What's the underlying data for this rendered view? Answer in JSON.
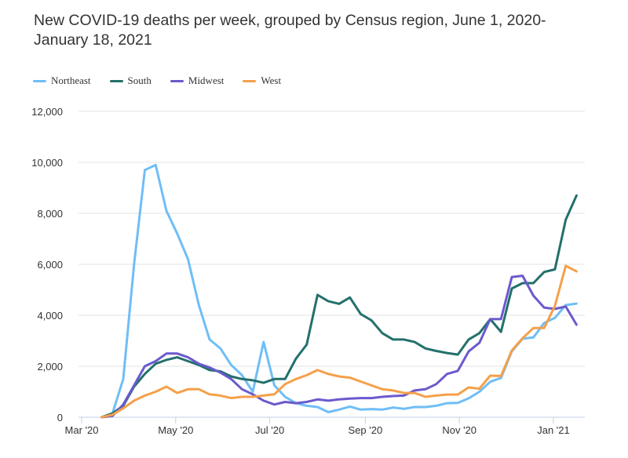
{
  "chart_data": {
    "type": "line",
    "title": "New COVID-19 deaths per week, grouped by Census region, June 1, 2020-January 18, 2021",
    "xlabel": "",
    "ylabel": "",
    "ylim": [
      0,
      12000
    ],
    "yticks": [
      "0",
      "2,000",
      "4,000",
      "6,000",
      "8,000",
      "10,000",
      "12,000"
    ],
    "ytick_values": [
      0,
      2000,
      4000,
      6000,
      8000,
      10000,
      12000
    ],
    "xticks": [
      "Mar '20",
      "May '20",
      "Jul '20",
      "Sep '20",
      "Nov '20",
      "Jan '21"
    ],
    "xtick_dates": [
      "2020-03-01",
      "2020-05-01",
      "2020-07-01",
      "2020-09-01",
      "2020-11-01",
      "2021-01-01"
    ],
    "xlim": [
      "2020-03-01",
      "2021-01-21"
    ],
    "grid": "horizontal",
    "legend_position": "top-left",
    "x": [
      "2020-03-14",
      "2020-03-21",
      "2020-03-28",
      "2020-04-04",
      "2020-04-11",
      "2020-04-18",
      "2020-04-25",
      "2020-05-02",
      "2020-05-09",
      "2020-05-16",
      "2020-05-23",
      "2020-05-30",
      "2020-06-06",
      "2020-06-13",
      "2020-06-20",
      "2020-06-27",
      "2020-07-04",
      "2020-07-11",
      "2020-07-18",
      "2020-07-25",
      "2020-08-01",
      "2020-08-08",
      "2020-08-15",
      "2020-08-22",
      "2020-08-29",
      "2020-09-05",
      "2020-09-12",
      "2020-09-19",
      "2020-09-26",
      "2020-10-03",
      "2020-10-10",
      "2020-10-17",
      "2020-10-24",
      "2020-10-31",
      "2020-11-07",
      "2020-11-14",
      "2020-11-21",
      "2020-11-28",
      "2020-12-05",
      "2020-12-12",
      "2020-12-19",
      "2020-12-26",
      "2021-01-02",
      "2021-01-09",
      "2021-01-16"
    ],
    "series": [
      {
        "name": "Northeast",
        "color": "#6fbef7",
        "values": [
          0,
          150,
          1500,
          6000,
          9700,
          9900,
          8100,
          7200,
          6200,
          4400,
          3050,
          2700,
          2050,
          1650,
          1000,
          2950,
          1250,
          800,
          550,
          450,
          400,
          200,
          300,
          420,
          300,
          320,
          300,
          380,
          330,
          400,
          400,
          450,
          550,
          560,
          740,
          1000,
          1390,
          1540,
          2580,
          3080,
          3130,
          3700,
          3900,
          4400,
          4460
        ]
      },
      {
        "name": "South",
        "color": "#23706b",
        "values": [
          0,
          150,
          450,
          1200,
          1700,
          2100,
          2250,
          2350,
          2200,
          2050,
          1850,
          1800,
          1600,
          1500,
          1450,
          1350,
          1500,
          1500,
          2300,
          2850,
          4800,
          4550,
          4450,
          4700,
          4050,
          3800,
          3300,
          3050,
          3050,
          2950,
          2700,
          2600,
          2520,
          2460,
          3050,
          3300,
          3850,
          3350,
          5050,
          5260,
          5260,
          5700,
          5800,
          7750,
          8700
        ]
      },
      {
        "name": "Midwest",
        "color": "#6a5acd",
        "values": [
          0,
          50,
          500,
          1250,
          2000,
          2200,
          2500,
          2500,
          2350,
          2100,
          1950,
          1750,
          1500,
          1100,
          900,
          650,
          500,
          600,
          550,
          600,
          700,
          650,
          700,
          730,
          750,
          750,
          800,
          830,
          850,
          1050,
          1100,
          1300,
          1700,
          1820,
          2580,
          2920,
          3850,
          3850,
          5500,
          5550,
          4770,
          4300,
          4250,
          4340,
          3630
        ]
      },
      {
        "name": "West",
        "color": "#f5a04a",
        "values": [
          0,
          100,
          350,
          650,
          850,
          1000,
          1200,
          950,
          1100,
          1100,
          900,
          850,
          750,
          800,
          800,
          850,
          900,
          1300,
          1500,
          1650,
          1850,
          1700,
          1600,
          1550,
          1400,
          1250,
          1100,
          1050,
          950,
          950,
          800,
          850,
          890,
          890,
          1170,
          1120,
          1630,
          1620,
          2620,
          3100,
          3500,
          3500,
          4370,
          5940,
          5720
        ]
      }
    ]
  }
}
